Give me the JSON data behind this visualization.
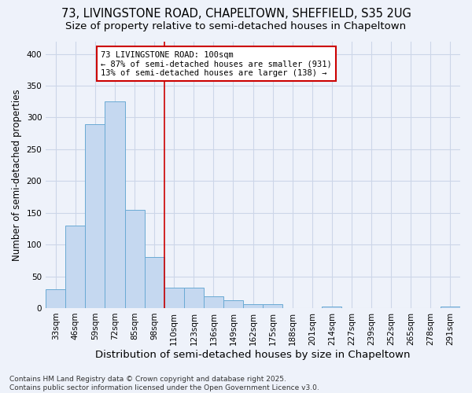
{
  "title_line1": "73, LIVINGSTONE ROAD, CHAPELTOWN, SHEFFIELD, S35 2UG",
  "title_line2": "Size of property relative to semi-detached houses in Chapeltown",
  "xlabel": "Distribution of semi-detached houses by size in Chapeltown",
  "ylabel": "Number of semi-detached properties",
  "categories": [
    "33sqm",
    "46sqm",
    "59sqm",
    "72sqm",
    "85sqm",
    "98sqm",
    "110sqm",
    "123sqm",
    "136sqm",
    "149sqm",
    "162sqm",
    "175sqm",
    "188sqm",
    "201sqm",
    "214sqm",
    "227sqm",
    "239sqm",
    "252sqm",
    "265sqm",
    "278sqm",
    "291sqm"
  ],
  "values": [
    30,
    130,
    290,
    325,
    155,
    80,
    32,
    32,
    18,
    12,
    6,
    6,
    0,
    0,
    3,
    0,
    0,
    0,
    0,
    0,
    3
  ],
  "bar_color": "#c5d8f0",
  "bar_edge_color": "#6aaad4",
  "grid_color": "#ccd6e8",
  "background_color": "#eef2fa",
  "annotation_box_text": "73 LIVINGSTONE ROAD: 100sqm\n← 87% of semi-detached houses are smaller (931)\n13% of semi-detached houses are larger (138) →",
  "annotation_box_color": "white",
  "annotation_box_edge_color": "#cc0000",
  "vline_color": "#cc0000",
  "vline_x": 5.5,
  "ylim": [
    0,
    420
  ],
  "yticks": [
    0,
    50,
    100,
    150,
    200,
    250,
    300,
    350,
    400
  ],
  "footnote": "Contains HM Land Registry data © Crown copyright and database right 2025.\nContains public sector information licensed under the Open Government Licence v3.0.",
  "title_fontsize": 10.5,
  "subtitle_fontsize": 9.5,
  "xlabel_fontsize": 9.5,
  "ylabel_fontsize": 8.5,
  "tick_fontsize": 7.5,
  "annotation_fontsize": 7.5,
  "footnote_fontsize": 6.5
}
